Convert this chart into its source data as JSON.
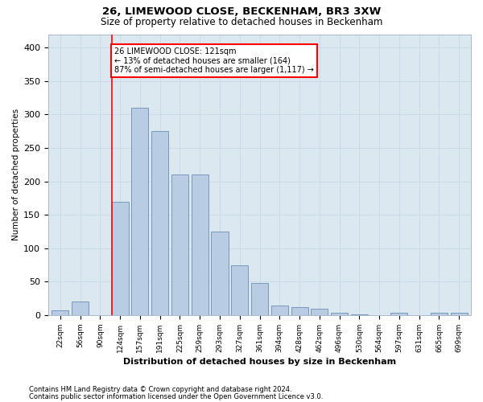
{
  "title1": "26, LIMEWOOD CLOSE, BECKENHAM, BR3 3XW",
  "title2": "Size of property relative to detached houses in Beckenham",
  "xlabel": "Distribution of detached houses by size in Beckenham",
  "ylabel": "Number of detached properties",
  "footer1": "Contains HM Land Registry data © Crown copyright and database right 2024.",
  "footer2": "Contains public sector information licensed under the Open Government Licence v3.0.",
  "categories": [
    "22sqm",
    "56sqm",
    "90sqm",
    "124sqm",
    "157sqm",
    "191sqm",
    "225sqm",
    "259sqm",
    "293sqm",
    "327sqm",
    "361sqm",
    "394sqm",
    "428sqm",
    "462sqm",
    "496sqm",
    "530sqm",
    "564sqm",
    "597sqm",
    "631sqm",
    "665sqm",
    "699sqm"
  ],
  "bar_values": [
    7,
    20,
    0,
    170,
    310,
    275,
    210,
    210,
    125,
    75,
    48,
    14,
    12,
    9,
    3,
    1,
    0,
    4,
    0,
    4,
    3
  ],
  "bar_color": "#b8cce4",
  "bar_edge_color": "#7799bb",
  "grid_color": "#c8d8e8",
  "background_color": "#dce8f0",
  "annotation_line1": "26 LIMEWOOD CLOSE: 121sqm",
  "annotation_line2": "← 13% of detached houses are smaller (164)",
  "annotation_line3": "87% of semi-detached houses are larger (1,117) →",
  "vline_bar_index": 3,
  "ylim": [
    0,
    420
  ],
  "yticks": [
    0,
    50,
    100,
    150,
    200,
    250,
    300,
    350,
    400
  ]
}
